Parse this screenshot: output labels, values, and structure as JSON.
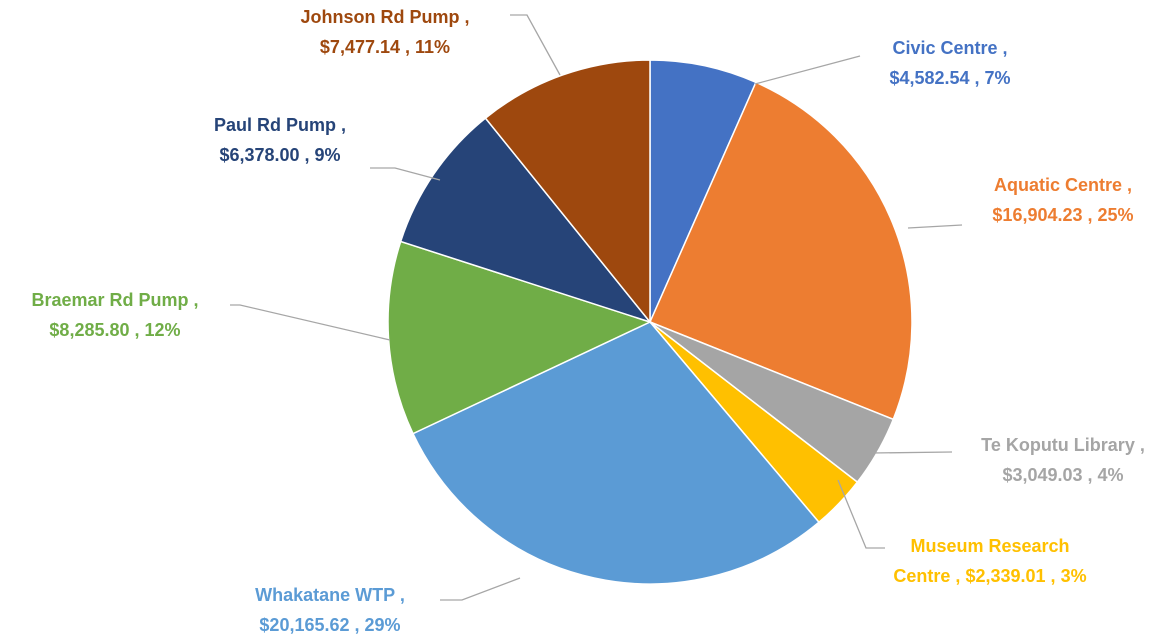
{
  "chart_data": {
    "type": "pie",
    "categories": [
      "Civic Centre ,",
      "Aquatic Centre ,",
      "Te Koputu Library ,",
      "Museum Research Centre ,",
      "Whakatane WTP ,",
      "Braemar Rd Pump ,",
      "Paul Rd Pump ,",
      "Johnson Rd Pump ,"
    ],
    "values": [
      4582.54,
      16904.23,
      3049.03,
      2339.01,
      20165.62,
      8285.8,
      6378.0,
      7477.14
    ],
    "value_labels": [
      "$4,582.54 ,",
      "$16,904.23 ,",
      "$3,049.03 ,",
      "$2,339.01 ,",
      "$20,165.62 ,",
      "$8,285.80 ,",
      "$6,378.00 ,",
      "$7,477.14 ,"
    ],
    "percents": [
      7,
      25,
      4,
      3,
      29,
      12,
      9,
      11
    ],
    "percent_labels": [
      "7%",
      "25%",
      "4%",
      "3%",
      "29%",
      "12%",
      "9%",
      "11%"
    ],
    "colors": [
      "#4472c4",
      "#ed7d31",
      "#a5a5a5",
      "#ffc000",
      "#5b9bd5",
      "#70ad47",
      "#264478",
      "#9e480e"
    ]
  }
}
